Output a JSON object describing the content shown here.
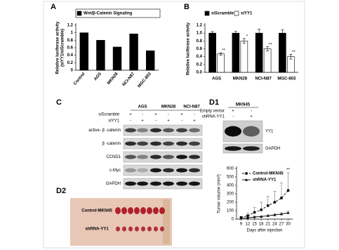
{
  "panel_labels": [
    "A",
    "B",
    "C",
    "D1",
    "D2"
  ],
  "chart_data": [
    {
      "type": "bar",
      "y_label": [
        "Relative luciferase activity",
        "(siYY1/siScramble)"
      ],
      "categories": [
        "Control",
        "AGS",
        "MKN28",
        "NCI-N87",
        "MGC-803"
      ],
      "series": [
        {
          "name": "Wnt/β-Catenin Signaling",
          "color": "#000000",
          "values": [
            1.0,
            0.8,
            0.62,
            0.97,
            0.52
          ]
        }
      ],
      "ylim": [
        0,
        1.2
      ],
      "yticks": [
        0,
        0.2,
        0.4,
        0.6,
        0.8,
        1,
        1.2
      ],
      "legend": "top"
    },
    {
      "type": "bar",
      "y_label": "Relative luciferase activity",
      "categories": [
        "AGS",
        "MKN28",
        "NCI-N87",
        "MGC-803"
      ],
      "series": [
        {
          "name": "siScramble",
          "color": "#000000",
          "values": [
            1,
            1,
            1,
            1
          ],
          "errors": [
            0.04,
            0.05,
            0.1,
            0.08
          ]
        },
        {
          "name": "siYY1",
          "color": "#ffffff",
          "values": [
            0.47,
            0.8,
            0.6,
            0.4
          ],
          "errors": [
            0.03,
            0.06,
            0.05,
            0.06
          ],
          "value_annotations": [
            "**",
            "*",
            "**",
            "**"
          ]
        }
      ],
      "ylim": [
        0,
        1.2
      ],
      "yticks": [
        {
          "value": 0,
          "label": "0.0"
        },
        0.2,
        0.4,
        0.6,
        0.8,
        {
          "value": 1,
          "label": "1.0"
        },
        1.2
      ],
      "legend": "top"
    },
    {
      "type": "line",
      "y_label": "Tumor volume (mm³)",
      "x_label": "Days after injection",
      "x": [
        9,
        12,
        15,
        18,
        21,
        24,
        27,
        30
      ],
      "series": [
        {
          "name": "Control-MKN45",
          "color": "#000000",
          "marker": "square",
          "dashed": true,
          "values": [
            20,
            40,
            80,
            110,
            160,
            200,
            250,
            340
          ],
          "errors": [
            10,
            30,
            60,
            90,
            110,
            130,
            180,
            210
          ],
          "value_annotations": [
            null,
            null,
            null,
            null,
            null,
            null,
            null,
            "**"
          ]
        },
        {
          "name": "shRNA-YY1",
          "color": "#000000",
          "marker": "triangle",
          "dashed": false,
          "values": [
            10,
            15,
            25,
            30,
            40,
            50,
            60,
            75
          ],
          "errors": [
            5,
            8,
            10,
            10,
            12,
            15,
            15,
            20
          ]
        }
      ],
      "xlim": [
        7,
        32
      ],
      "xticks": [
        9,
        12,
        15,
        18,
        21,
        24,
        27,
        30
      ],
      "ylim": [
        0,
        600
      ],
      "yticks": [
        0,
        100,
        200,
        300,
        400,
        500,
        600
      ],
      "legend": "top-left"
    }
  ],
  "blot_c": {
    "columns": [
      "AGS",
      "MKN28",
      "NCI-N87"
    ],
    "conditions": [
      {
        "name": "siScramble",
        "signs": [
          "+",
          "-",
          "+",
          "-",
          "+",
          "-"
        ]
      },
      {
        "name": "siYY1",
        "signs": [
          "-",
          "+",
          "-",
          "+",
          "-",
          "+"
        ]
      }
    ],
    "bands": [
      "active- β -catenin",
      "β -catenin",
      "CCND1",
      "c-Myc",
      "GAPDH"
    ]
  },
  "blot_d1": {
    "cell_line": "MKN45",
    "conditions": [
      {
        "name": "Empty vector",
        "signs": [
          "+",
          "-"
        ]
      },
      {
        "name": "shRNA-YY1",
        "signs": [
          "-",
          "+"
        ]
      }
    ],
    "bands": [
      "YY1",
      "GAPDH"
    ]
  },
  "photo_d2": {
    "labels": [
      "Control-MKN45",
      "shRNA-YY1"
    ]
  }
}
